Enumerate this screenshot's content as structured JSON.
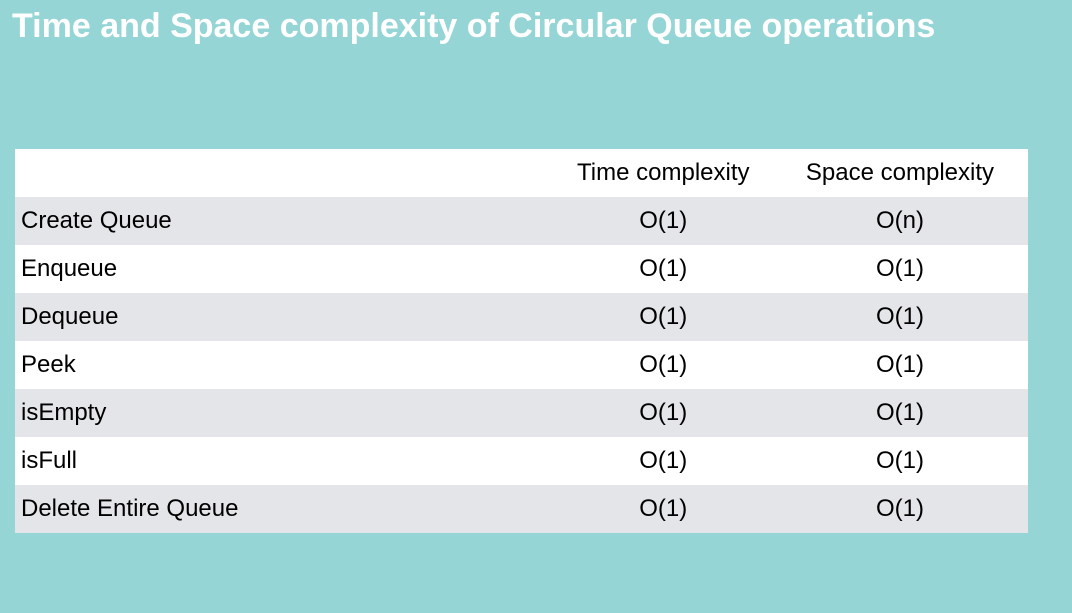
{
  "title": "Time and Space complexity of Circular Queue operations",
  "table": {
    "headers": [
      "",
      "Time complexity",
      "Space complexity"
    ],
    "rows": [
      {
        "operation": "Create Queue",
        "time": "O(1)",
        "space": "O(n)"
      },
      {
        "operation": "Enqueue",
        "time": "O(1)",
        "space": "O(1)"
      },
      {
        "operation": "Dequeue",
        "time": "O(1)",
        "space": "O(1)"
      },
      {
        "operation": "Peek",
        "time": "O(1)",
        "space": "O(1)"
      },
      {
        "operation": "isEmpty",
        "time": "O(1)",
        "space": "O(1)"
      },
      {
        "operation": "isFull",
        "time": "O(1)",
        "space": "O(1)"
      },
      {
        "operation": "Delete Entire Queue",
        "time": "O(1)",
        "space": "O(1)"
      }
    ]
  },
  "colors": {
    "background": "#95d5d5",
    "title": "#ffffff",
    "row_stripe": "#e4e5e8",
    "row_plain": "#ffffff"
  }
}
